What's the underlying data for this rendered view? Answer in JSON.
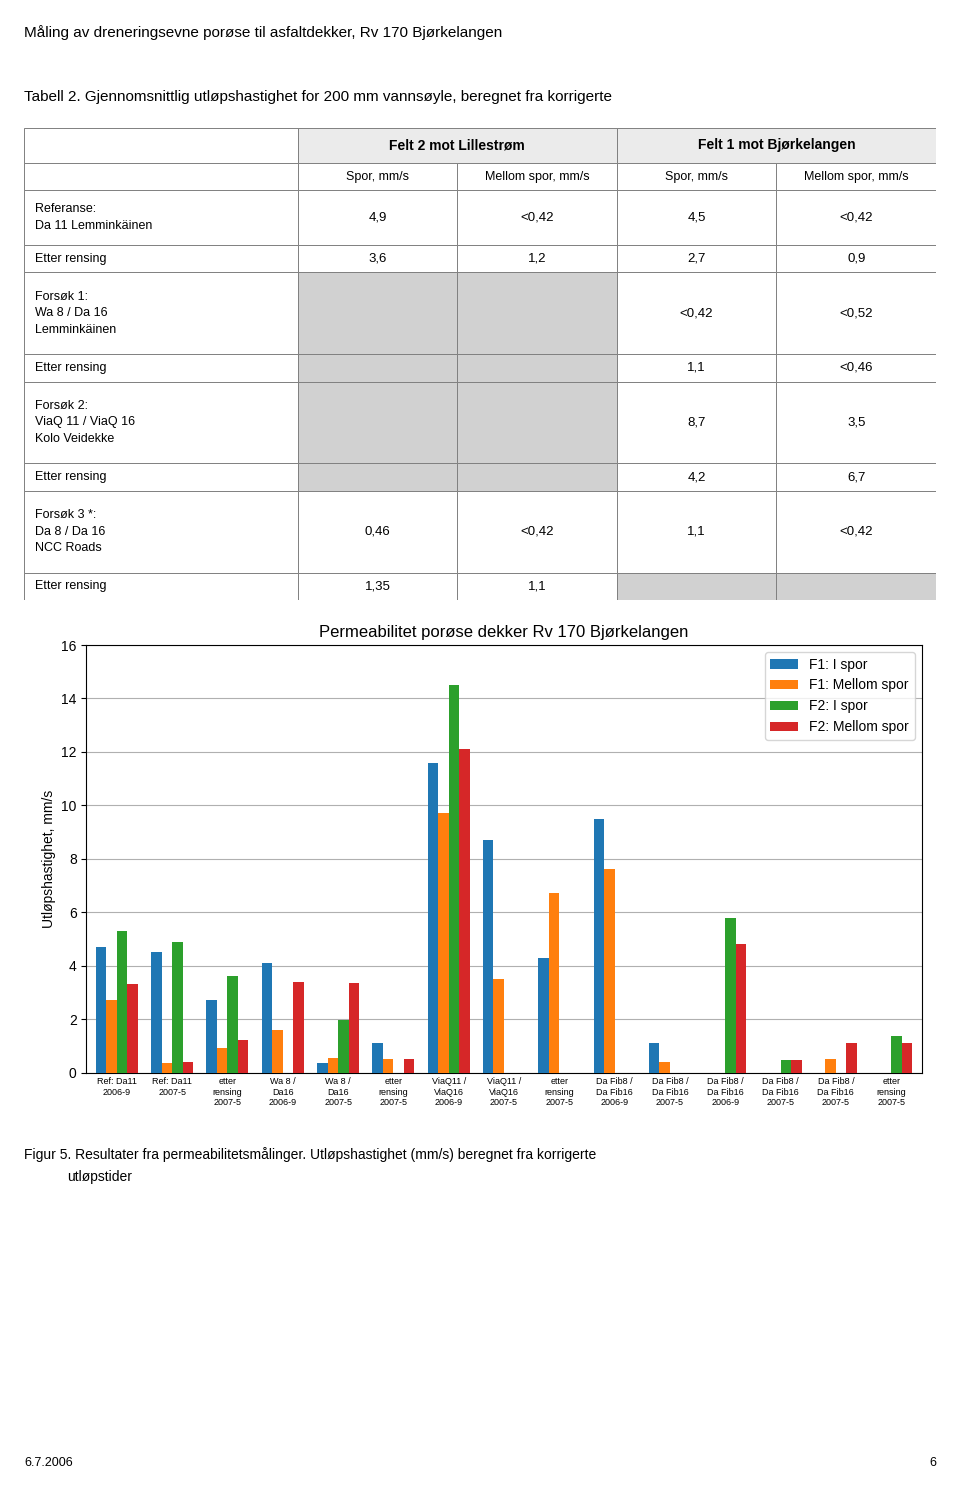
{
  "chart_data": [
    {
      "type": "table",
      "title": "Tabell 2. Gjennomsnittlig utløpshastighet for 200 mm vannsøyle, beregnet fra korrigerte",
      "annotations": [
        "Måling av dreneringsevne porøse til asfaltdekker, Rv 170 Bjørkelangen"
      ],
      "column_groups": [
        {
          "name": "Felt 2 mot Lillestrøm",
          "columns": [
            "Spor, mm/s",
            "Mellom spor, mm/s"
          ]
        },
        {
          "name": "Felt 1 mot Bjørkelangen",
          "columns": [
            "Spor, mm/s",
            "Mellom spor, mm/s"
          ]
        }
      ],
      "rows": [
        {
          "label": "Referanse:\nDa 11 Lemminkäinen",
          "values": [
            4.9,
            0.42,
            4.5,
            0.42
          ],
          "value_labels": [
            "4,9",
            "<0,42",
            "4,5",
            "<0,42"
          ]
        },
        {
          "label": "Etter rensing",
          "values": [
            3.6,
            1.2,
            2.7,
            0.9
          ],
          "value_labels": [
            "3,6",
            "1,2",
            "2,7",
            "0,9"
          ]
        },
        {
          "label": "Forsøk 1:\nWa 8 / Da 16\nLemminkäinen",
          "values": [
            null,
            null,
            0.42,
            0.52
          ],
          "value_labels": [
            null,
            null,
            "<0,42",
            "<0,52"
          ]
        },
        {
          "label": "Etter rensing",
          "values": [
            null,
            null,
            1.1,
            0.46
          ],
          "value_labels": [
            null,
            null,
            "1,1",
            "<0,46"
          ]
        },
        {
          "label": "Forsøk 2:\nViaQ 11 / ViaQ 16\nKolo Veidekke",
          "values": [
            null,
            null,
            8.7,
            3.5
          ],
          "value_labels": [
            null,
            null,
            "8,7",
            "3,5"
          ]
        },
        {
          "label": "Etter rensing",
          "values": [
            null,
            null,
            4.2,
            6.7
          ],
          "value_labels": [
            null,
            null,
            "4,2",
            "6,7"
          ]
        },
        {
          "label": "Forsøk 3 *:\nDa 8 / Da 16\nNCC Roads",
          "values": [
            0.46,
            0.42,
            1.1,
            0.42
          ],
          "value_labels": [
            "0,46",
            "<0,42",
            "1,1",
            "<0,42"
          ]
        },
        {
          "label": "Etter rensing",
          "values": [
            1.35,
            1.1,
            null,
            null
          ],
          "value_labels": [
            "1,35",
            "1,1",
            null,
            null
          ]
        }
      ]
    },
    {
      "type": "bar",
      "title": "Permeabilitet porøse dekker Rv 170 Bjørkelangen",
      "y_label": "Utløpshastighet, mm/s",
      "annotations": [
        "Figur 5. Resultater fra permeabilitetsmålinger. Utløpshastighet (mm/s) beregnet fra korrigerte",
        "utløpstider",
        "6.7.2006",
        "6"
      ],
      "categories": [
        "Ref: Da11\n2006-9",
        "Ref: Da11\n2007-5",
        "etter\nrensing\n2007-5",
        "Wa 8 /\nDa16\n2006-9",
        "Wa 8 /\nDa16\n2007-5",
        "etter\nrensing\n2007-5",
        "ViaQ11 /\nViaQ16\n2006-9",
        "ViaQ11 /\nViaQ16\n2007-5",
        "etter\nrensing\n2007-5",
        "Da Fib8 /\nDa Fib16\n2006-9",
        "Da Fib8 /\nDa Fib16\n2007-5",
        "Da Fib8 /\nDa Fib16\n2006-9",
        "Da Fib8 /\nDa Fib16\n2007-5",
        "Da Fib8 /\nDa Fib16\n2007-5",
        "etter\nrensing\n2007-5"
      ],
      "series": [
        {
          "name": "F1: I spor",
          "values": [
            4.7,
            4.5,
            2.7,
            4.1,
            0.35,
            1.1,
            11.6,
            8.7,
            4.3,
            9.5,
            1.1,
            0.0,
            0.0,
            0.0,
            0.0
          ]
        },
        {
          "name": "F1: Mellom spor",
          "values": [
            2.7,
            0.35,
            0.9,
            1.6,
            0.55,
            0.5,
            9.7,
            3.5,
            6.7,
            7.6,
            0.4,
            0.0,
            0.0,
            0.5,
            0.0
          ]
        },
        {
          "name": "F2: I spor",
          "values": [
            5.3,
            4.9,
            3.6,
            0.0,
            1.95,
            0.0,
            14.5,
            0.0,
            0.0,
            0.0,
            0.0,
            5.8,
            0.45,
            0.0,
            1.35
          ]
        },
        {
          "name": "F2: Mellom spor",
          "values": [
            3.3,
            0.4,
            1.2,
            3.4,
            3.35,
            0.5,
            12.1,
            0.0,
            0.0,
            0.0,
            0.0,
            4.8,
            0.45,
            1.1,
            1.1
          ]
        }
      ],
      "ylim": [
        0,
        16
      ],
      "yticks": [
        0,
        2,
        4,
        6,
        8,
        10,
        12,
        14,
        16
      ],
      "grid": true,
      "legend": "upper right"
    }
  ]
}
